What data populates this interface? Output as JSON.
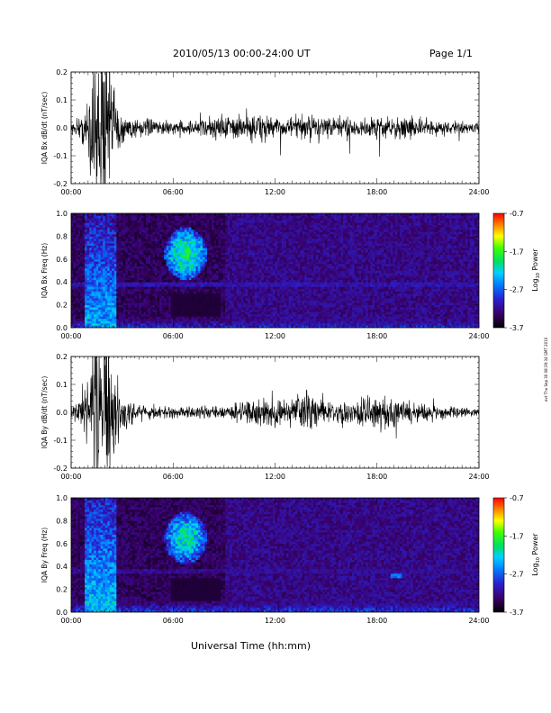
{
  "header": {
    "title": "2010/05/13  00:00-24:00 UT",
    "page": "Page 1/1"
  },
  "footer": {
    "xlabel": "Universal Time (hh:mm)",
    "stamp": "evt Thu Sep 30 08:39:34 GMT 2010"
  },
  "colorbar": {
    "title": "Log10 Power",
    "title_base": "Log",
    "title_sub": "10",
    "title_rest": " Power",
    "ticks": [
      "-0.7",
      "-1.7",
      "-2.7",
      "-3.7"
    ],
    "tick_values": [
      -0.7,
      -1.7,
      -2.7,
      -3.7
    ],
    "range": [
      -3.7,
      -0.7
    ]
  },
  "chart_data": [
    {
      "type": "line",
      "ylabel": "IQA Bx dB/dt (nT/sec)",
      "xlim": [
        "00:00",
        "24:00"
      ],
      "ylim": [
        -0.2,
        0.2
      ],
      "xticks": [
        "00:00",
        "06:00",
        "12:00",
        "18:00",
        "24:00"
      ],
      "yticks": [
        "-0.2",
        "-0.1",
        "0.0",
        "0.1",
        "0.2"
      ],
      "envelope": [
        {
          "t": 0.0,
          "amp": 0.02
        },
        {
          "t": 0.5,
          "amp": 0.035
        },
        {
          "t": 1.0,
          "amp": 0.08
        },
        {
          "t": 1.5,
          "amp": 0.25
        },
        {
          "t": 2.0,
          "amp": 0.3
        },
        {
          "t": 2.5,
          "amp": 0.12
        },
        {
          "t": 3.0,
          "amp": 0.05
        },
        {
          "t": 4.0,
          "amp": 0.025
        },
        {
          "t": 6.0,
          "amp": 0.02
        },
        {
          "t": 8.0,
          "amp": 0.025
        },
        {
          "t": 9.0,
          "amp": 0.04
        },
        {
          "t": 10.0,
          "amp": 0.035
        },
        {
          "t": 11.0,
          "amp": 0.045
        },
        {
          "t": 12.0,
          "amp": 0.03
        },
        {
          "t": 13.0,
          "amp": 0.03
        },
        {
          "t": 14.0,
          "amp": 0.045
        },
        {
          "t": 15.0,
          "amp": 0.035
        },
        {
          "t": 17.0,
          "amp": 0.03
        },
        {
          "t": 19.0,
          "amp": 0.035
        },
        {
          "t": 21.0,
          "amp": 0.025
        },
        {
          "t": 24.0,
          "amp": 0.015
        }
      ]
    },
    {
      "type": "heatmap",
      "ylabel": "IQA Bx Freq (Hz)",
      "xlim": [
        "00:00",
        "24:00"
      ],
      "ylim": [
        0.0,
        1.0
      ],
      "xticks": [
        "00:00",
        "06:00",
        "12:00",
        "18:00",
        "24:00"
      ],
      "yticks": [
        "0.0",
        "0.2",
        "0.4",
        "0.6",
        "0.8",
        "1.0"
      ],
      "zlabel": "Log10 Power",
      "zlim": [
        -3.7,
        -0.7
      ],
      "features": [
        {
          "kind": "burst",
          "t": [
            0.8,
            2.6
          ],
          "f": [
            0.0,
            1.0
          ],
          "level": -2.4
        },
        {
          "kind": "pulsation",
          "t": [
            5.5,
            8.0
          ],
          "f": [
            0.42,
            0.88
          ],
          "level": -2.0
        },
        {
          "kind": "band",
          "t": [
            0.0,
            24.0
          ],
          "f": [
            0.36,
            0.4
          ],
          "level": -3.1
        },
        {
          "kind": "lowfreq",
          "t": [
            0.0,
            24.0
          ],
          "f": [
            0.0,
            0.12
          ],
          "level": -2.9
        }
      ]
    },
    {
      "type": "line",
      "ylabel": "IQA By dB/dt (nT/sec)",
      "xlim": [
        "00:00",
        "24:00"
      ],
      "ylim": [
        -0.2,
        0.2
      ],
      "xticks": [
        "00:00",
        "06:00",
        "12:00",
        "18:00",
        "24:00"
      ],
      "yticks": [
        "-0.2",
        "-0.1",
        "0.0",
        "0.1",
        "0.2"
      ],
      "envelope": [
        {
          "t": 0.0,
          "amp": 0.02
        },
        {
          "t": 0.5,
          "amp": 0.05
        },
        {
          "t": 1.0,
          "amp": 0.12
        },
        {
          "t": 1.5,
          "amp": 0.3
        },
        {
          "t": 2.0,
          "amp": 0.3
        },
        {
          "t": 2.5,
          "amp": 0.15
        },
        {
          "t": 3.0,
          "amp": 0.06
        },
        {
          "t": 4.0,
          "amp": 0.025
        },
        {
          "t": 6.0,
          "amp": 0.015
        },
        {
          "t": 9.0,
          "amp": 0.02
        },
        {
          "t": 10.5,
          "amp": 0.04
        },
        {
          "t": 11.5,
          "amp": 0.06
        },
        {
          "t": 12.5,
          "amp": 0.03
        },
        {
          "t": 14.0,
          "amp": 0.06
        },
        {
          "t": 15.0,
          "amp": 0.035
        },
        {
          "t": 16.0,
          "amp": 0.04
        },
        {
          "t": 17.0,
          "amp": 0.05
        },
        {
          "t": 18.5,
          "amp": 0.045
        },
        {
          "t": 20.0,
          "amp": 0.035
        },
        {
          "t": 22.0,
          "amp": 0.02
        },
        {
          "t": 24.0,
          "amp": 0.012
        }
      ]
    },
    {
      "type": "heatmap",
      "ylabel": "IQA By Freq (Hz)",
      "xlim": [
        "00:00",
        "24:00"
      ],
      "ylim": [
        0.0,
        1.0
      ],
      "xticks": [
        "00:00",
        "06:00",
        "12:00",
        "18:00",
        "24:00"
      ],
      "yticks": [
        "0.0",
        "0.2",
        "0.4",
        "0.6",
        "0.8",
        "1.0"
      ],
      "zlabel": "Log10 Power",
      "zlim": [
        -3.7,
        -0.7
      ],
      "features": [
        {
          "kind": "burst",
          "t": [
            0.8,
            2.6
          ],
          "f": [
            0.0,
            1.0
          ],
          "level": -2.3
        },
        {
          "kind": "pulsation",
          "t": [
            5.5,
            8.0
          ],
          "f": [
            0.42,
            0.88
          ],
          "level": -2.1
        },
        {
          "kind": "band",
          "t": [
            0.0,
            24.0
          ],
          "f": [
            0.34,
            0.38
          ],
          "level": -3.2
        },
        {
          "kind": "lowfreq",
          "t": [
            0.0,
            24.0
          ],
          "f": [
            0.0,
            0.12
          ],
          "level": -2.8
        },
        {
          "kind": "patch",
          "t": [
            18.8,
            19.4
          ],
          "f": [
            0.3,
            0.33
          ],
          "level": -2.6
        }
      ]
    }
  ]
}
